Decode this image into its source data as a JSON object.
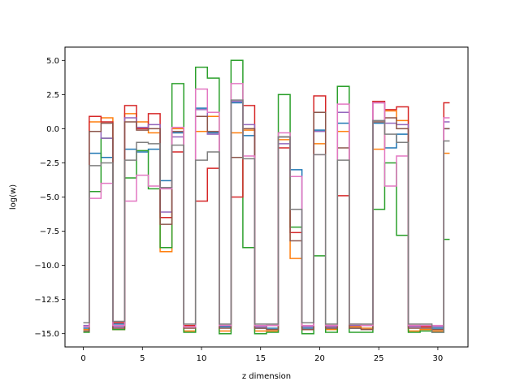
{
  "chart_data": {
    "type": "line",
    "drawstyle": "steps-mid",
    "xlabel": "z dimension",
    "ylabel": "log(w)",
    "xlim": [
      -1.55,
      32.55
    ],
    "ylim": [
      -15.97,
      5.97
    ],
    "grid": false,
    "x_ticks": [
      0,
      5,
      10,
      15,
      20,
      25,
      30
    ],
    "y_ticks": [
      5.0,
      2.5,
      0.0,
      -2.5,
      -5.0,
      -7.5,
      -10.0,
      -12.5,
      -15.0
    ],
    "x_tick_labels": [
      "0",
      "5",
      "10",
      "15",
      "20",
      "25",
      "30"
    ],
    "y_tick_labels": [
      "5.0",
      "2.5",
      "0.0",
      "−2.5",
      "−5.0",
      "−7.5",
      "−10.0",
      "−12.5",
      "−15.0"
    ],
    "x": [
      0,
      1,
      2,
      3,
      4,
      5,
      6,
      7,
      8,
      9,
      10,
      11,
      12,
      13,
      14,
      15,
      16,
      17,
      18,
      19,
      20,
      21,
      22,
      23,
      24,
      25,
      26,
      27,
      28,
      29,
      30,
      31
    ],
    "series": [
      {
        "color": "#1f77b4",
        "values": [
          -14.6,
          -1.8,
          -2.1,
          -14.3,
          -1.5,
          -1.7,
          -1.5,
          -3.8,
          -0.3,
          -14.5,
          1.5,
          -0.3,
          -14.5,
          1.9,
          -0.5,
          -14.6,
          -14.6,
          -0.6,
          -3.0,
          -14.6,
          -0.1,
          -14.6,
          0.4,
          -14.6,
          -14.6,
          0.4,
          -1.4,
          -0.4,
          -14.5,
          -14.5,
          -14.6,
          0.0
        ]
      },
      {
        "color": "#ff7f0e",
        "values": [
          -14.7,
          0.5,
          0.8,
          -14.7,
          1.1,
          0.5,
          -0.3,
          -9.0,
          0.0,
          -14.8,
          -0.2,
          0.9,
          -14.8,
          -0.3,
          -0.1,
          -14.8,
          -14.8,
          -0.8,
          -9.5,
          -14.7,
          -1.1,
          -14.7,
          -0.2,
          -14.5,
          -14.6,
          -1.5,
          1.3,
          0.6,
          -14.8,
          -14.7,
          -14.8,
          -1.8
        ]
      },
      {
        "color": "#2ca02c",
        "values": [
          -14.9,
          -4.6,
          -0.7,
          -14.7,
          -3.6,
          -1.6,
          -4.4,
          -8.7,
          3.3,
          -14.9,
          4.5,
          3.7,
          -15.0,
          5.0,
          -8.7,
          -15.0,
          -14.9,
          2.5,
          -7.2,
          -15.0,
          -9.3,
          -14.9,
          3.1,
          -14.9,
          -14.9,
          -5.9,
          -2.5,
          -7.8,
          -14.9,
          -14.8,
          -14.9,
          -8.1
        ]
      },
      {
        "color": "#d62728",
        "values": [
          -14.5,
          0.9,
          0.5,
          -14.2,
          1.7,
          0.0,
          1.1,
          -6.5,
          -1.7,
          -14.4,
          -5.3,
          -2.9,
          -14.4,
          -5.0,
          1.7,
          -14.5,
          -14.4,
          -1.4,
          -7.6,
          -14.5,
          2.4,
          -14.4,
          -4.9,
          -14.4,
          -14.4,
          2.0,
          1.4,
          1.6,
          -14.4,
          -14.5,
          -14.5,
          1.9
        ]
      },
      {
        "color": "#9467bd",
        "values": [
          -14.4,
          -0.2,
          -0.7,
          -14.5,
          0.8,
          0.1,
          0.3,
          -6.1,
          -0.6,
          -14.5,
          1.4,
          -0.4,
          -14.4,
          2.0,
          0.3,
          -14.5,
          -14.4,
          -1.1,
          -3.5,
          -14.5,
          -0.2,
          -14.5,
          1.2,
          -14.4,
          -14.4,
          1.9,
          0.4,
          0.3,
          -14.5,
          -14.4,
          -14.5,
          0.5
        ]
      },
      {
        "color": "#8c564b",
        "values": [
          -14.8,
          -0.2,
          0.4,
          -14.6,
          0.5,
          -0.1,
          0.0,
          -7.0,
          -0.2,
          -14.6,
          0.9,
          -0.2,
          -14.6,
          -2.1,
          0.0,
          -14.6,
          -14.7,
          -0.6,
          -8.2,
          -14.7,
          1.2,
          -14.6,
          -1.4,
          -14.6,
          -14.7,
          0.5,
          0.8,
          0.0,
          -14.6,
          -14.6,
          -14.7,
          0.0
        ]
      },
      {
        "color": "#e377c2",
        "values": [
          -14.5,
          -5.1,
          -4.0,
          -14.4,
          -5.3,
          -3.4,
          -4.2,
          -4.4,
          0.1,
          -14.5,
          2.9,
          1.2,
          -14.4,
          3.3,
          -2.0,
          -14.4,
          -14.4,
          -0.3,
          -3.5,
          -14.4,
          -1.9,
          -14.4,
          1.8,
          -14.3,
          -14.4,
          1.9,
          -4.2,
          -2.0,
          -14.4,
          -14.4,
          -14.4,
          0.8
        ]
      },
      {
        "color": "#7f7f7f",
        "values": [
          -14.2,
          -2.7,
          -2.5,
          -14.1,
          -2.3,
          -1.0,
          -1.1,
          -4.3,
          -1.2,
          -14.3,
          -2.3,
          -1.7,
          -14.3,
          2.1,
          -2.2,
          -14.3,
          -14.3,
          -0.6,
          -5.9,
          -14.2,
          -1.9,
          -14.3,
          -2.3,
          -14.3,
          -14.3,
          0.6,
          -0.4,
          -1.0,
          -14.3,
          -14.3,
          -14.9,
          -0.9
        ]
      }
    ]
  }
}
